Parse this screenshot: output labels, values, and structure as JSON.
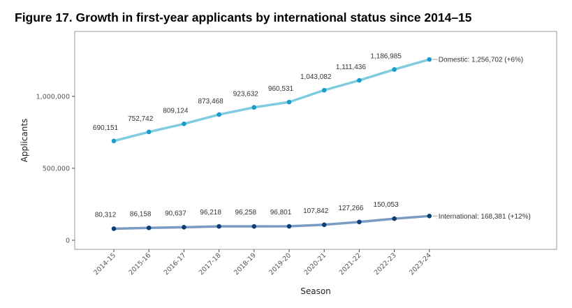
{
  "figure_title": "Figure 17. Growth in first-year applicants by international status since 2014–15",
  "chart_data": {
    "type": "line",
    "title": "Figure 17. Growth in first-year applicants by international status since 2014–15",
    "xlabel": "Season",
    "ylabel": "Applicants",
    "x": [
      "2014-15",
      "2015-16",
      "2016-17",
      "2017-18",
      "2018-19",
      "2019-20",
      "2020-21",
      "2021-22",
      "2022-23",
      "2023-24"
    ],
    "ylim": [
      -55000,
      1300000
    ],
    "yticks": [
      0,
      500000,
      1000000
    ],
    "ytick_labels": [
      "0",
      "500,000",
      "1,000,000"
    ],
    "grid": true,
    "series": [
      {
        "name": "Domestic",
        "color": "#7fcbe0",
        "point_color": "#1a9cc9",
        "values": [
          690151,
          752742,
          809124,
          873468,
          923632,
          960531,
          1043082,
          1111436,
          1186985,
          1256702
        ],
        "labels": [
          "690,151",
          "752,742",
          "809,124",
          "873,468",
          "923,632",
          "960,531",
          "1,043,082",
          "1,111,436",
          "1,186,985",
          ""
        ],
        "end_label": "Domestic: 1,256,702 (+6%)"
      },
      {
        "name": "International",
        "color": "#7a9cc4",
        "point_color": "#0d3f75",
        "values": [
          80312,
          86158,
          90637,
          96218,
          96258,
          96801,
          107842,
          127266,
          150053,
          168381
        ],
        "labels": [
          "80,312",
          "86,158",
          "90,637",
          "96,218",
          "96,258",
          "96,801",
          "107,842",
          "127,266",
          "150,053",
          ""
        ],
        "end_label": "International: 168,381 (+12%)"
      }
    ]
  }
}
